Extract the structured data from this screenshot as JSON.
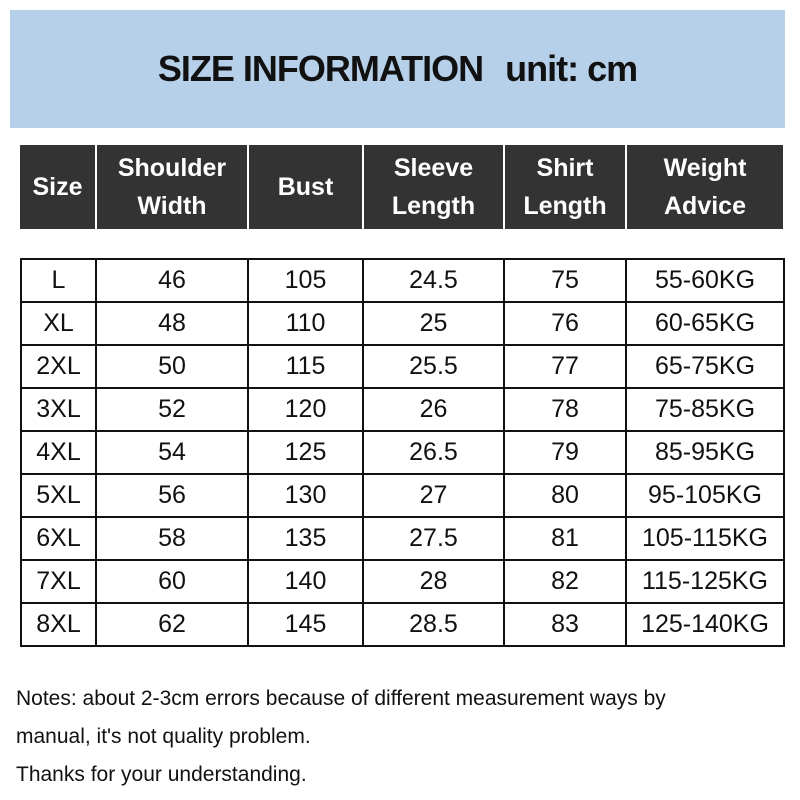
{
  "header": {
    "title": "SIZE INFORMATION",
    "unit": "unit: cm"
  },
  "table": {
    "columns": [
      [
        "Size"
      ],
      [
        "Shoulder",
        "Width"
      ],
      [
        "Bust"
      ],
      [
        "Sleeve",
        "Length"
      ],
      [
        "Shirt",
        "Length"
      ],
      [
        "Weight",
        "Advice"
      ]
    ],
    "rows": [
      [
        "L",
        "46",
        "105",
        "24.5",
        "75",
        "55-60KG"
      ],
      [
        "XL",
        "48",
        "110",
        "25",
        "76",
        "60-65KG"
      ],
      [
        "2XL",
        "50",
        "115",
        "25.5",
        "77",
        "65-75KG"
      ],
      [
        "3XL",
        "52",
        "120",
        "26",
        "78",
        "75-85KG"
      ],
      [
        "4XL",
        "54",
        "125",
        "26.5",
        "79",
        "85-95KG"
      ],
      [
        "5XL",
        "56",
        "130",
        "27",
        "80",
        "95-105KG"
      ],
      [
        "6XL",
        "58",
        "135",
        "27.5",
        "81",
        "105-115KG"
      ],
      [
        "7XL",
        "60",
        "140",
        "28",
        "82",
        "115-125KG"
      ],
      [
        "8XL",
        "62",
        "145",
        "28.5",
        "83",
        "125-140KG"
      ]
    ]
  },
  "notes": [
    "Notes: about 2-3cm errors because of different measurement ways by",
    "manual, it's not quality problem.",
    "Thanks for your understanding."
  ]
}
